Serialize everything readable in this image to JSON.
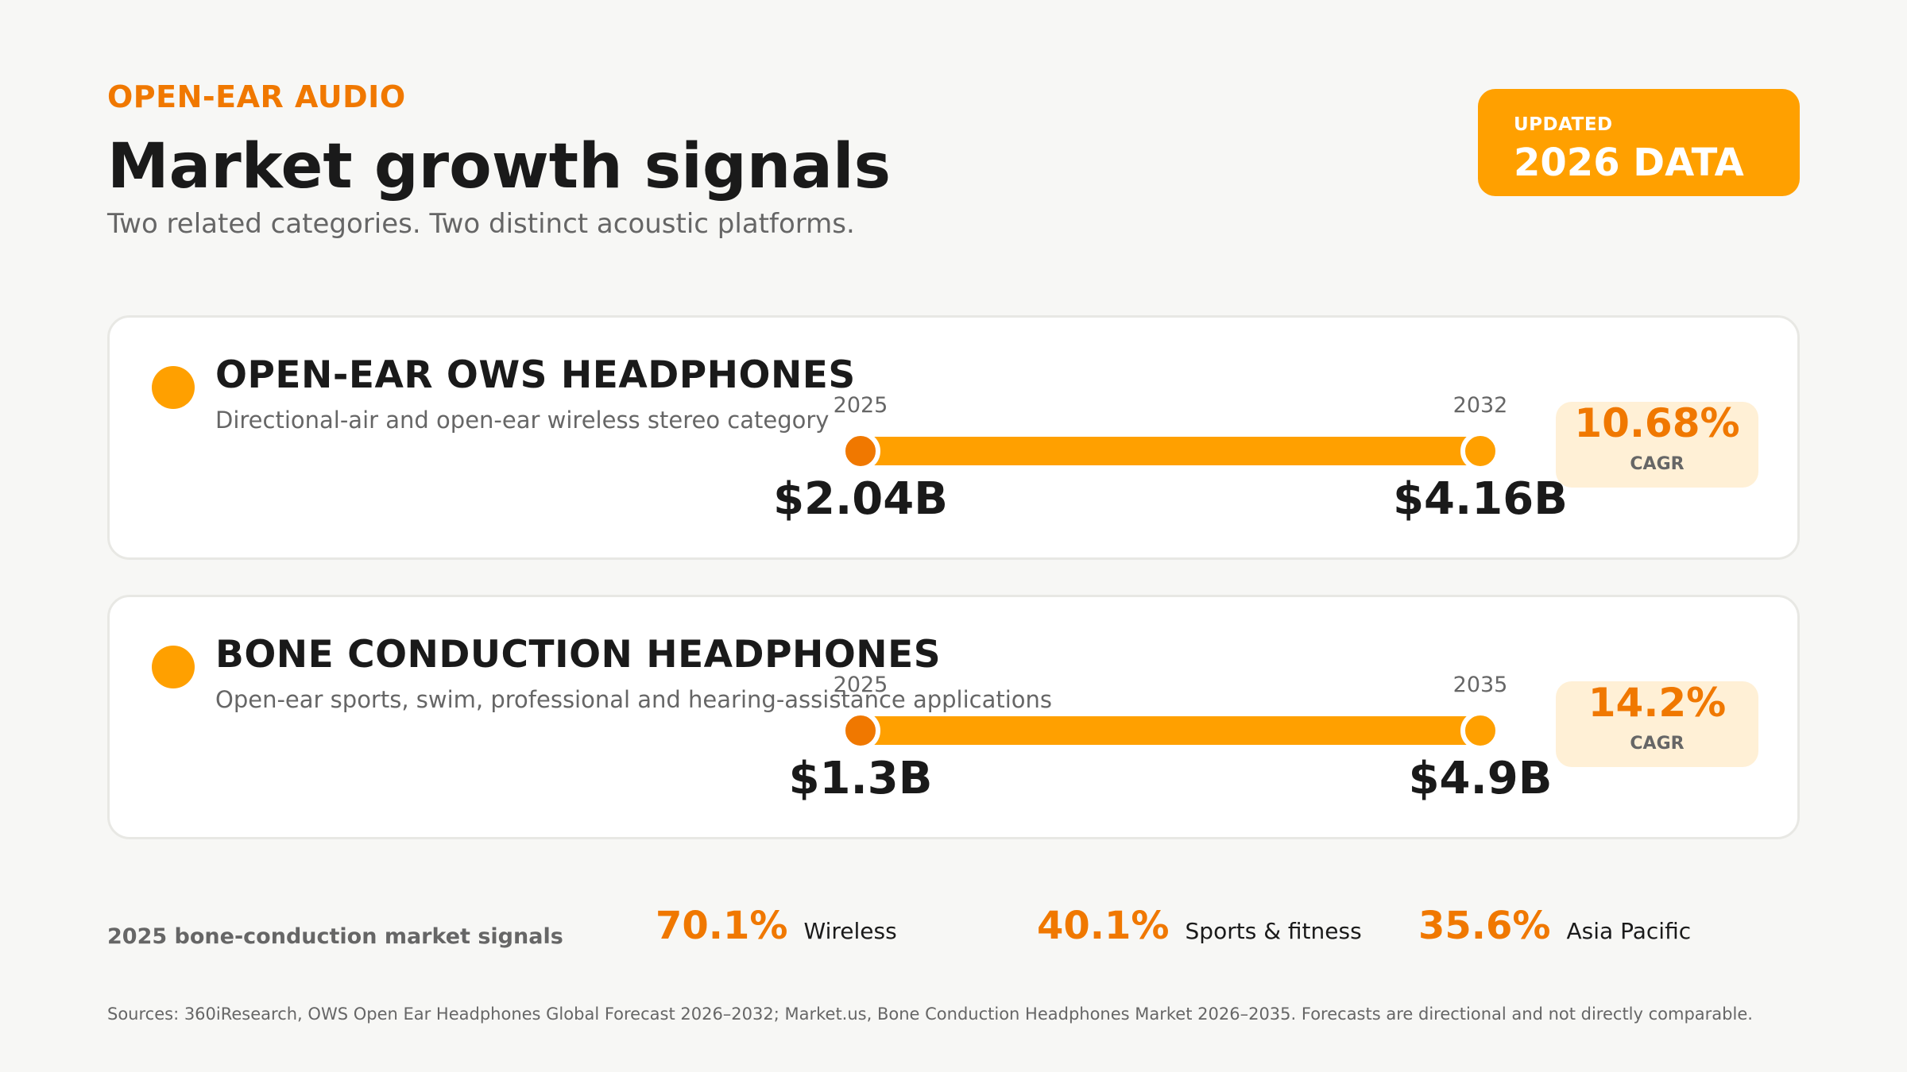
{
  "header": {
    "eyebrow": "OPEN-EAR AUDIO",
    "title": "Market growth signals",
    "subtitle": "Two related categories. Two distinct acoustic platforms."
  },
  "badge": {
    "label": "UPDATED",
    "value": "2026 DATA"
  },
  "colors": {
    "accent": "#ffa000",
    "accent_dark": "#f07800",
    "cagr_bg": "#fff0d6"
  },
  "chart_data": [
    {
      "type": "range",
      "title": "OPEN-EAR OWS HEADPHONES",
      "subtitle": "Directional-air and open-ear wireless stereo category",
      "start": {
        "year": "2025",
        "value": 2.04,
        "label": "$2.04B"
      },
      "end": {
        "year": "2032",
        "value": 4.16,
        "label": "$4.16B"
      },
      "cagr": {
        "value": "10.68%",
        "label": "CAGR"
      }
    },
    {
      "type": "range",
      "title": "BONE CONDUCTION HEADPHONES",
      "subtitle": "Open-ear sports, swim, professional and hearing-assistance applications",
      "start": {
        "year": "2025",
        "value": 1.3,
        "label": "$1.3B"
      },
      "end": {
        "year": "2035",
        "value": 4.9,
        "label": "$4.9B"
      },
      "cagr": {
        "value": "14.2%",
        "label": "CAGR"
      }
    }
  ],
  "signals": {
    "title": "2025 bone-conduction market signals",
    "items": [
      {
        "value": "70.1%",
        "label": "Wireless"
      },
      {
        "value": "40.1%",
        "label": "Sports & fitness"
      },
      {
        "value": "35.6%",
        "label": "Asia Pacific"
      }
    ]
  },
  "sources": "Sources: 360iResearch, OWS Open Ear Headphones Global Forecast 2026–2032; Market.us, Bone Conduction Headphones Market 2026–2035. Forecasts are directional and not directly comparable."
}
